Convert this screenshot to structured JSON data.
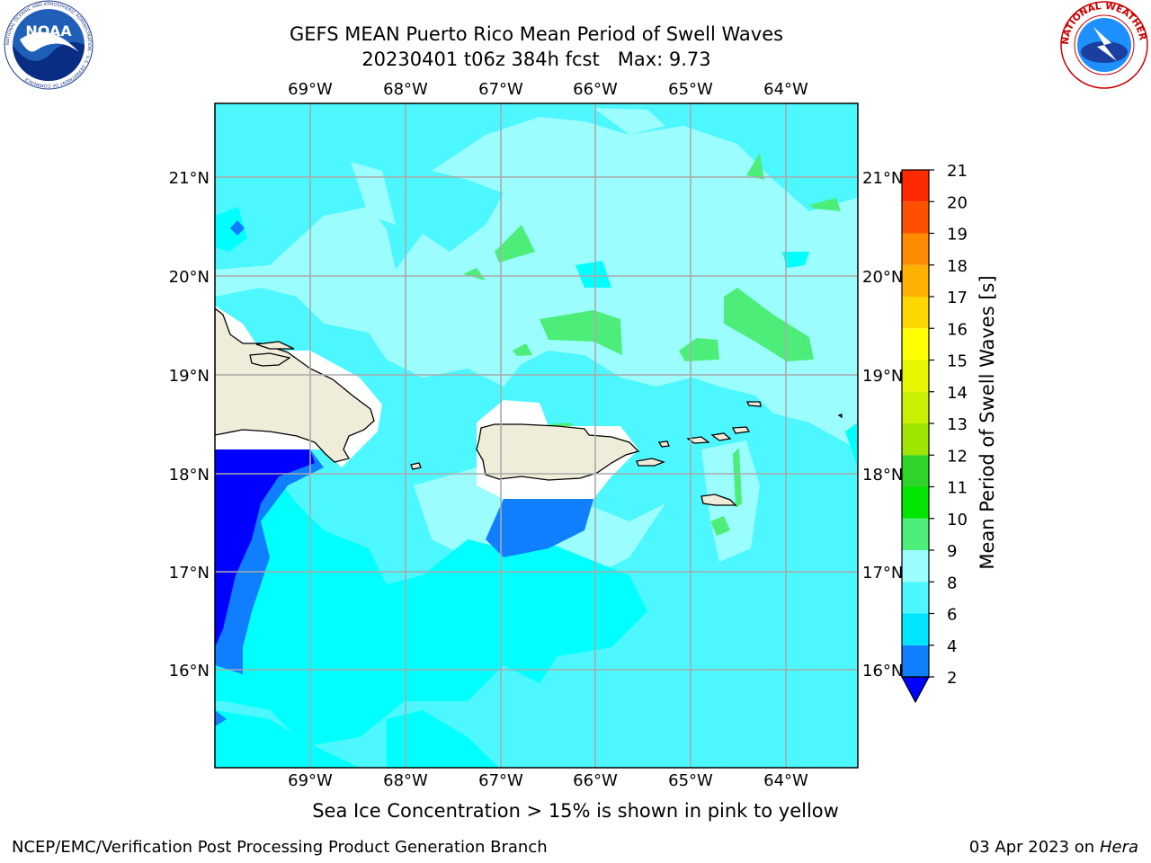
{
  "title_line1": "GEFS MEAN Puerto Rico Mean Period of Swell Waves",
  "title_line2": "20230401 t06z 384h fcst   Max: 9.73",
  "map": {
    "lon_labels": [
      "69°W",
      "68°W",
      "67°W",
      "66°W",
      "65°W",
      "64°W"
    ],
    "lat_labels": [
      "21°N",
      "20°N",
      "19°N",
      "18°N",
      "17°N",
      "16°N"
    ]
  },
  "colorbar": {
    "label": "Mean Period of Swell Waves [s]",
    "ticks": [
      "2",
      "4",
      "6",
      "8",
      "9",
      "10",
      "11",
      "12",
      "13",
      "14",
      "15",
      "16",
      "17",
      "18",
      "19",
      "20",
      "21"
    ],
    "colors": [
      "#0f6fff",
      "#00e5ff",
      "#4df0ff",
      "#9afcff",
      "#4de87a",
      "#2ed642",
      "#00e600",
      "#2fd42b",
      "#9ee600",
      "#c8f000",
      "#e6f500",
      "#ffff00",
      "#ffd700",
      "#ffb000",
      "#ff8c00",
      "#ff5000",
      "#ff2a00",
      "#ff0000"
    ],
    "under_color": "#0000ff"
  },
  "colors": {
    "land": "#efedda",
    "deep_blue": "#0000ff",
    "blue": "#0f7fff",
    "cyan": "#00ffff",
    "aqua": "#4cf7ff",
    "pale": "#9bfdfd",
    "green": "#4cee79",
    "grid": "#aaaaaa"
  },
  "logos": {
    "noaa": "NOAA",
    "noaa_ring": "NATIONAL OCEANIC AND ATMOSPHERIC ADMINISTRATION · U.S. DEPARTMENT OF COMMERCE",
    "nws_ring": "NATIONAL WEATHER SERVICE"
  },
  "caption": "Sea Ice Concentration > 15% is shown in pink to yellow",
  "footer_left": "NCEP/EMC/Verification Post Processing Product Generation Branch",
  "footer_date": "03 Apr 2023 on ",
  "footer_host": "Hera"
}
